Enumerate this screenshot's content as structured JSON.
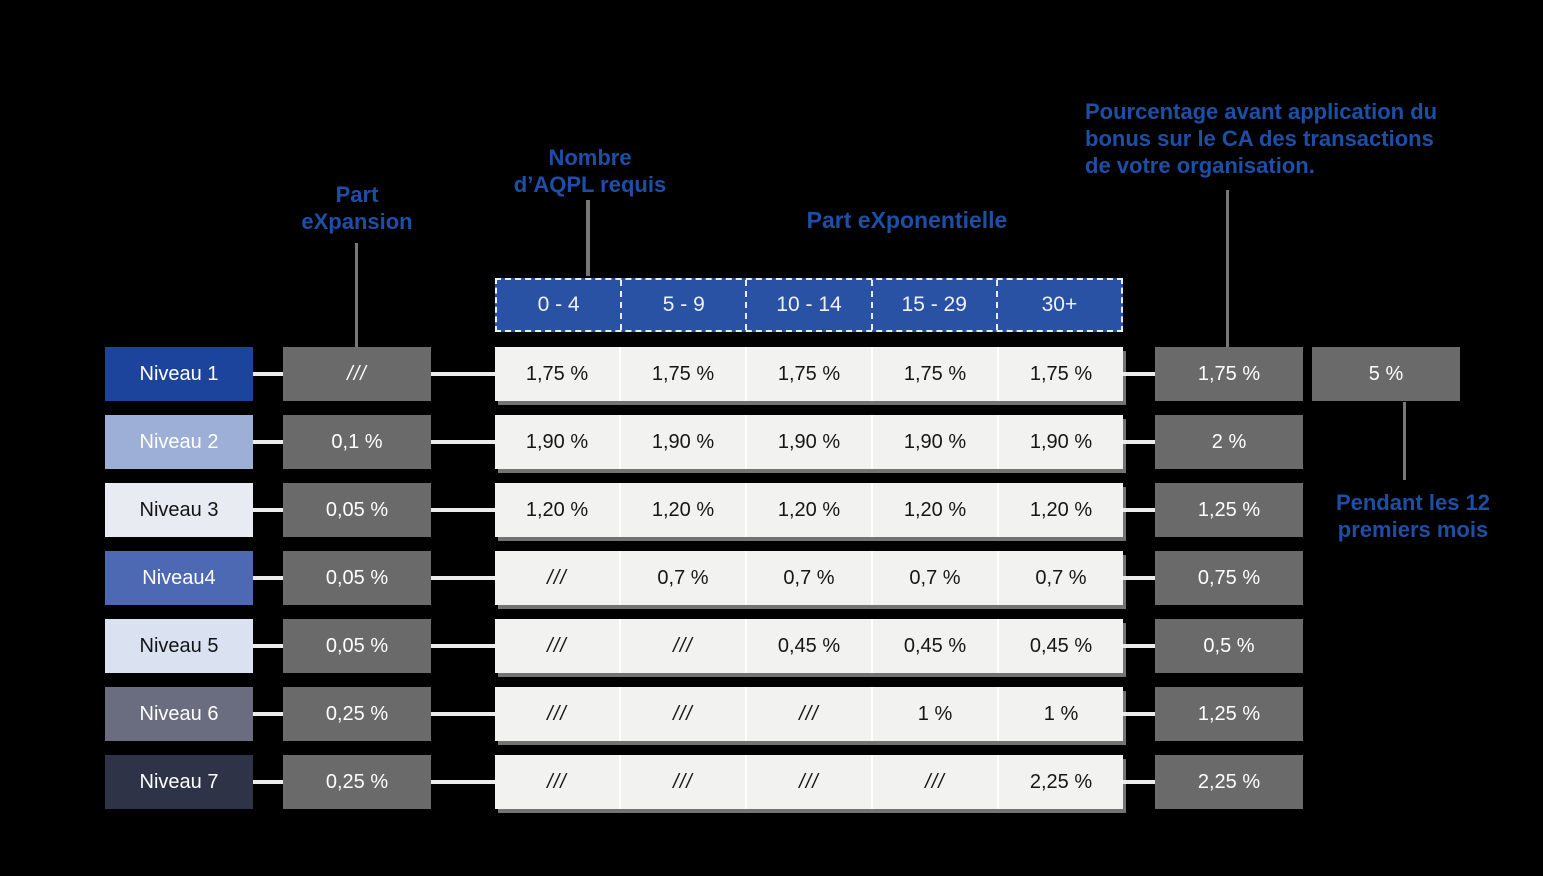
{
  "colors": {
    "background": "#000000",
    "annotation_blue": "#1E4FA6",
    "header_blue": "#2A52A4",
    "gray_cell": "#6A6A6A",
    "table_cell": "#F2F2F1",
    "connector_light": "#ECECEC",
    "connector_gray": "#777777"
  },
  "annotations": {
    "part_expansion": {
      "lines": [
        "Part",
        "eXpansion"
      ]
    },
    "aqpl": {
      "lines": [
        "Nombre",
        "d’AQPL requis"
      ]
    },
    "part_exponentielle": {
      "label": "Part eXponentielle"
    },
    "bonus_note": {
      "lines": [
        "Pourcentage avant application du",
        "bonus sur le CA des transactions",
        "de votre organisation."
      ]
    },
    "first_year_note": {
      "lines": [
        "Pendant les 12",
        "premiers mois"
      ]
    }
  },
  "table": {
    "header": [
      "0 - 4",
      "5 - 9",
      "10 - 14",
      "15 - 29",
      "30+"
    ],
    "rows": [
      {
        "level": "Niveau 1",
        "level_bg": "#1D449C",
        "level_fg": "#FFFFFF",
        "expansion": "///",
        "cells": [
          "1,75 %",
          "1,75 %",
          "1,75 %",
          "1,75 %",
          "1,75 %"
        ],
        "bonus": "1,75 %",
        "extra": "5 %"
      },
      {
        "level": "Niveau 2",
        "level_bg": "#9DAFD6",
        "level_fg": "#FFFFFF",
        "expansion": "0,1 %",
        "cells": [
          "1,90 %",
          "1,90 %",
          "1,90 %",
          "1,90 %",
          "1,90 %"
        ],
        "bonus": "2 %"
      },
      {
        "level": "Niveau 3",
        "level_bg": "#E9EBF3",
        "level_fg": "#141414",
        "expansion": "0,05 %",
        "cells": [
          "1,20 %",
          "1,20 %",
          "1,20 %",
          "1,20 %",
          "1,20 %"
        ],
        "bonus": "1,25 %"
      },
      {
        "level": "Niveau4",
        "level_bg": "#4D69B4",
        "level_fg": "#FFFFFF",
        "expansion": "0,05 %",
        "cells": [
          "///",
          "0,7 %",
          "0,7 %",
          "0,7 %",
          "0,7 %"
        ],
        "bonus": "0,75 %"
      },
      {
        "level": "Niveau 5",
        "level_bg": "#DAE2F2",
        "level_fg": "#141414",
        "expansion": "0,05 %",
        "cells": [
          "///",
          "///",
          "0,45 %",
          "0,45 %",
          "0,45 %"
        ],
        "bonus": "0,5 %"
      },
      {
        "level": "Niveau 6",
        "level_bg": "#6A6D80",
        "level_fg": "#FFFFFF",
        "expansion": "0,25 %",
        "cells": [
          "///",
          "///",
          "///",
          "1 %",
          "1 %"
        ],
        "bonus": "1,25 %"
      },
      {
        "level": "Niveau 7",
        "level_bg": "#2F3348",
        "level_fg": "#FFFFFF",
        "expansion": "0,25 %",
        "cells": [
          "///",
          "///",
          "///",
          "///",
          "2,25 %"
        ],
        "bonus": "2,25 %"
      }
    ]
  }
}
